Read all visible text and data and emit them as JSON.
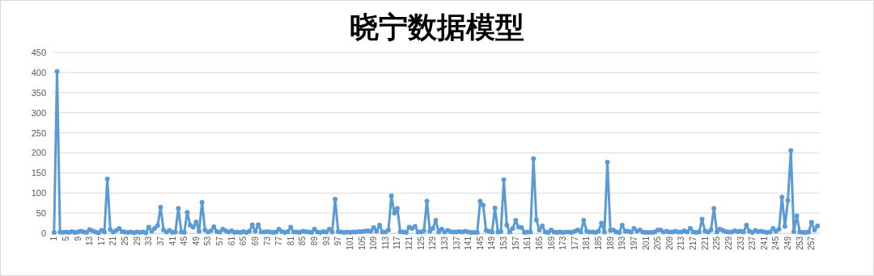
{
  "chart_data": {
    "type": "line",
    "title": "晓宁数据模型",
    "categories": [
      "1",
      null,
      null,
      null,
      "5",
      null,
      null,
      null,
      "9",
      null,
      null,
      null,
      "13",
      null,
      null,
      null,
      "17",
      null,
      null,
      null,
      "21",
      null,
      null,
      null,
      "25",
      null,
      null,
      null,
      "29",
      null,
      null,
      null,
      "33",
      null,
      null,
      null,
      "37",
      null,
      null,
      null,
      "41",
      null,
      null,
      null,
      "45",
      null,
      null,
      null,
      "49",
      null,
      null,
      null,
      "53",
      null,
      null,
      null,
      "57",
      null,
      null,
      null,
      "61",
      null,
      null,
      null,
      "65",
      null,
      null,
      null,
      "69",
      null,
      null,
      null,
      "73",
      null,
      null,
      null,
      "77",
      null,
      null,
      null,
      "81",
      null,
      null,
      null,
      "85",
      null,
      null,
      null,
      "89",
      null,
      null,
      null,
      "93",
      null,
      null,
      null,
      "97",
      null,
      null,
      null,
      "101",
      null,
      null,
      null,
      "105",
      null,
      null,
      null,
      "109",
      null,
      null,
      null,
      "113",
      null,
      null,
      null,
      "117",
      null,
      null,
      null,
      "121",
      null,
      null,
      null,
      "125",
      null,
      null,
      null,
      "129",
      null,
      null,
      null,
      "133",
      null,
      null,
      null,
      "137",
      null,
      null,
      null,
      "141",
      null,
      null,
      null,
      "145",
      null,
      null,
      null,
      "149",
      null,
      null,
      null,
      "153",
      null,
      null,
      null,
      "157",
      null,
      null,
      null,
      "161",
      null,
      null,
      null,
      "165",
      null,
      null,
      null,
      "169",
      null,
      null,
      null,
      "173",
      null,
      null,
      null,
      "177",
      null,
      null,
      null,
      "181",
      null,
      null,
      null,
      "185",
      null,
      null,
      null,
      "189",
      null,
      null,
      null,
      "193",
      null,
      null,
      null,
      "197",
      null,
      null,
      null,
      "201",
      null,
      null,
      null,
      "205",
      null,
      null,
      null,
      "209",
      null,
      null,
      null,
      "213",
      null,
      null,
      null,
      "217",
      null,
      null,
      null,
      "221",
      null,
      null,
      null,
      "225",
      null,
      null,
      null,
      "229",
      null,
      null,
      null,
      "233",
      null,
      null,
      null,
      "237",
      null,
      null,
      null,
      "241",
      null,
      null,
      null,
      "245",
      null,
      null,
      null,
      "249",
      null,
      null,
      null,
      "253",
      null,
      null,
      null,
      "257",
      null,
      null
    ],
    "series": [
      {
        "color": "#5b9bd5",
        "values": [
          2,
          403,
          3,
          2,
          3,
          2,
          4,
          2,
          3,
          5,
          3,
          2,
          9,
          6,
          3,
          1,
          7,
          3,
          135,
          9,
          3,
          7,
          12,
          4,
          3,
          2,
          3,
          1,
          3,
          2,
          3,
          1,
          15,
          5,
          12,
          19,
          65,
          8,
          3,
          7,
          2,
          3,
          62,
          3,
          2,
          52,
          20,
          15,
          28,
          5,
          77,
          8,
          3,
          6,
          16,
          4,
          3,
          10,
          6,
          3,
          6,
          2,
          3,
          2,
          4,
          2,
          5,
          21,
          5,
          21,
          3,
          3,
          4,
          3,
          2,
          3,
          10,
          4,
          2,
          4,
          15,
          3,
          3,
          2,
          5,
          4,
          3,
          2,
          10,
          3,
          2,
          4,
          3,
          10,
          3,
          85,
          4,
          3,
          2,
          3,
          2,
          3,
          3,
          4,
          4,
          5,
          6,
          5,
          14,
          5,
          20,
          3,
          3,
          8,
          93,
          50,
          62,
          4,
          3,
          2,
          15,
          12,
          17,
          3,
          3,
          6,
          80,
          5,
          12,
          32,
          3,
          10,
          3,
          7,
          4,
          3,
          3,
          4,
          3,
          5,
          3,
          2,
          2,
          2,
          80,
          70,
          7,
          5,
          3,
          63,
          3,
          4,
          133,
          20,
          3,
          12,
          32,
          15,
          14,
          2,
          3,
          3,
          186,
          33,
          8,
          18,
          3,
          2,
          8,
          3,
          2,
          3,
          2,
          3,
          3,
          2,
          5,
          8,
          3,
          32,
          5,
          3,
          3,
          2,
          5,
          25,
          3,
          177,
          7,
          8,
          3,
          2,
          20,
          5,
          5,
          3,
          12,
          5,
          8,
          3,
          2,
          2,
          2,
          3,
          8,
          8,
          3,
          5,
          3,
          3,
          5,
          3,
          3,
          6,
          3,
          12,
          3,
          2,
          3,
          35,
          5,
          3,
          8,
          62,
          3,
          10,
          7,
          4,
          3,
          3,
          6,
          4,
          5,
          3,
          20,
          5,
          2,
          7,
          4,
          5,
          3,
          2,
          3,
          12,
          5,
          10,
          90,
          17,
          82,
          206,
          4,
          43,
          3,
          2,
          2,
          3,
          27,
          8,
          18
        ]
      }
    ],
    "ylim": [
      0,
      450
    ],
    "yticks": [
      0,
      50,
      100,
      150,
      200,
      250,
      300,
      350,
      400,
      450
    ],
    "grid": "y",
    "marker": "circle"
  }
}
